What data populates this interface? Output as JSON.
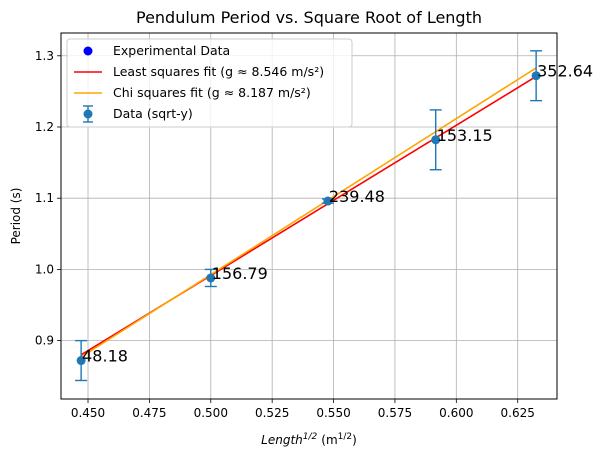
{
  "chart_data": {
    "type": "scatter",
    "title": "Pendulum Period vs. Square Root of Length",
    "xlabel": {
      "base": "Length",
      "sup": "1/2",
      "unit_base": "(m",
      "unit_sup": "1/2",
      "unit_close": ")"
    },
    "ylabel": "Period (s)",
    "xlim": [
      0.439,
      0.641
    ],
    "ylim": [
      0.818,
      1.332
    ],
    "xticks": [
      "0.450",
      "0.475",
      "0.500",
      "0.525",
      "0.550",
      "0.575",
      "0.600",
      "0.625"
    ],
    "yticks": [
      "0.9",
      "1.0",
      "1.1",
      "1.2",
      "1.3"
    ],
    "grid": true,
    "legend_position": "top-left",
    "legend": [
      {
        "label": "Experimental Data",
        "kind": "point",
        "color": "#0000ff"
      },
      {
        "label": "Least squares fit (g ≈ 8.546 m/s²)",
        "kind": "line",
        "color": "#ff0000"
      },
      {
        "label": "Chi squares fit (g ≈ 8.187 m/s²)",
        "kind": "line",
        "color": "#ffa500"
      },
      {
        "label": "Data (sqrt-y)",
        "kind": "errorbar",
        "color": "#1f77b4"
      }
    ],
    "points": [
      {
        "x": 0.4472,
        "y": 0.872,
        "err": 0.028,
        "label": "48.18"
      },
      {
        "x": 0.5,
        "y": 0.988,
        "err": 0.012,
        "label": "156.79"
      },
      {
        "x": 0.5477,
        "y": 1.096,
        "err": 0.003,
        "label": "239.48"
      },
      {
        "x": 0.5916,
        "y": 1.182,
        "err": 0.042,
        "label": "153.15"
      },
      {
        "x": 0.6325,
        "y": 1.272,
        "err": 0.035,
        "label": "352.64"
      }
    ],
    "fits": [
      {
        "name": "Least squares fit (g ≈ 8.546 m/s²)",
        "color": "#ff0000",
        "x": [
          0.4472,
          0.6325
        ],
        "y": [
          0.88,
          1.271
        ]
      },
      {
        "name": "Chi squares fit (g ≈ 8.187 m/s²)",
        "color": "#ffa500",
        "x": [
          0.4472,
          0.6325
        ],
        "y": [
          0.877,
          1.283
        ]
      }
    ]
  }
}
